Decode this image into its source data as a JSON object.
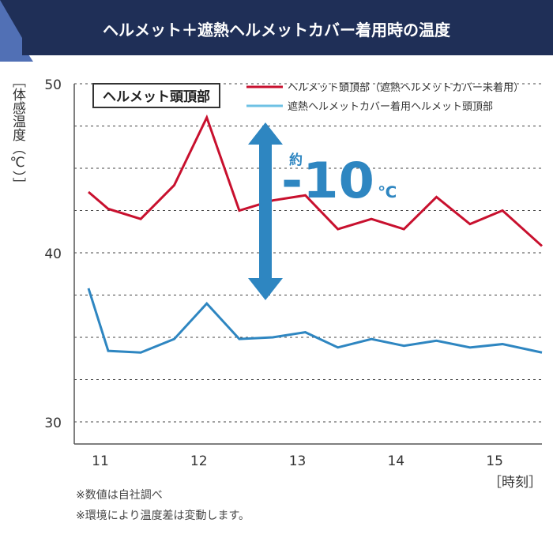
{
  "header": {
    "title": "ヘルメット＋遮熱ヘルメットカバー着用時の温度",
    "colors": {
      "navy": "#1F2F57",
      "accent": "#5170B5",
      "text": "#ffffff"
    }
  },
  "chart_data": {
    "type": "line",
    "ylabel": "［体感温度（℃）］",
    "xlabel": "［時刻］",
    "annotation_box": "ヘルメット頭頂部",
    "ylim": [
      30,
      50
    ],
    "xlim": [
      10.8,
      15.4
    ],
    "yticks": [
      30,
      40,
      50
    ],
    "xticks": [
      11,
      12,
      13,
      14,
      15
    ],
    "grid": "dashed",
    "legend": "top-right",
    "series": [
      {
        "name": "ヘルメット頭頂部（遮熱ヘルメットカバー未着用）",
        "color": "#C8102E",
        "x": [
          10.8,
          11.0,
          11.33,
          11.67,
          12.0,
          12.33,
          12.67,
          13.0,
          13.33,
          13.67,
          14.0,
          14.33,
          14.67,
          15.0,
          15.4
        ],
        "values": [
          43.6,
          42.6,
          42.0,
          44.0,
          48.0,
          42.5,
          43.1,
          43.4,
          41.4,
          42.0,
          41.4,
          43.3,
          41.7,
          42.5,
          40.4
        ]
      },
      {
        "name": "遮熱ヘルメットカバー着用ヘルメット頭頂部",
        "color": "#2E86C1",
        "legend_color": "#6EC1E4",
        "x": [
          10.8,
          11.0,
          11.33,
          11.67,
          12.0,
          12.33,
          12.67,
          13.0,
          13.33,
          13.67,
          14.0,
          14.33,
          14.67,
          15.0,
          15.4
        ],
        "values": [
          37.9,
          34.2,
          34.1,
          34.9,
          37.0,
          34.9,
          35.0,
          35.3,
          34.4,
          34.9,
          34.5,
          34.8,
          34.4,
          34.6,
          34.1
        ]
      }
    ],
    "difference": {
      "prefix": "約",
      "value": "-10",
      "unit": "℃",
      "color": "#2E86C1"
    }
  },
  "notes": [
    "※数値は自社調べ",
    "※環境により温度差は変動します。"
  ]
}
